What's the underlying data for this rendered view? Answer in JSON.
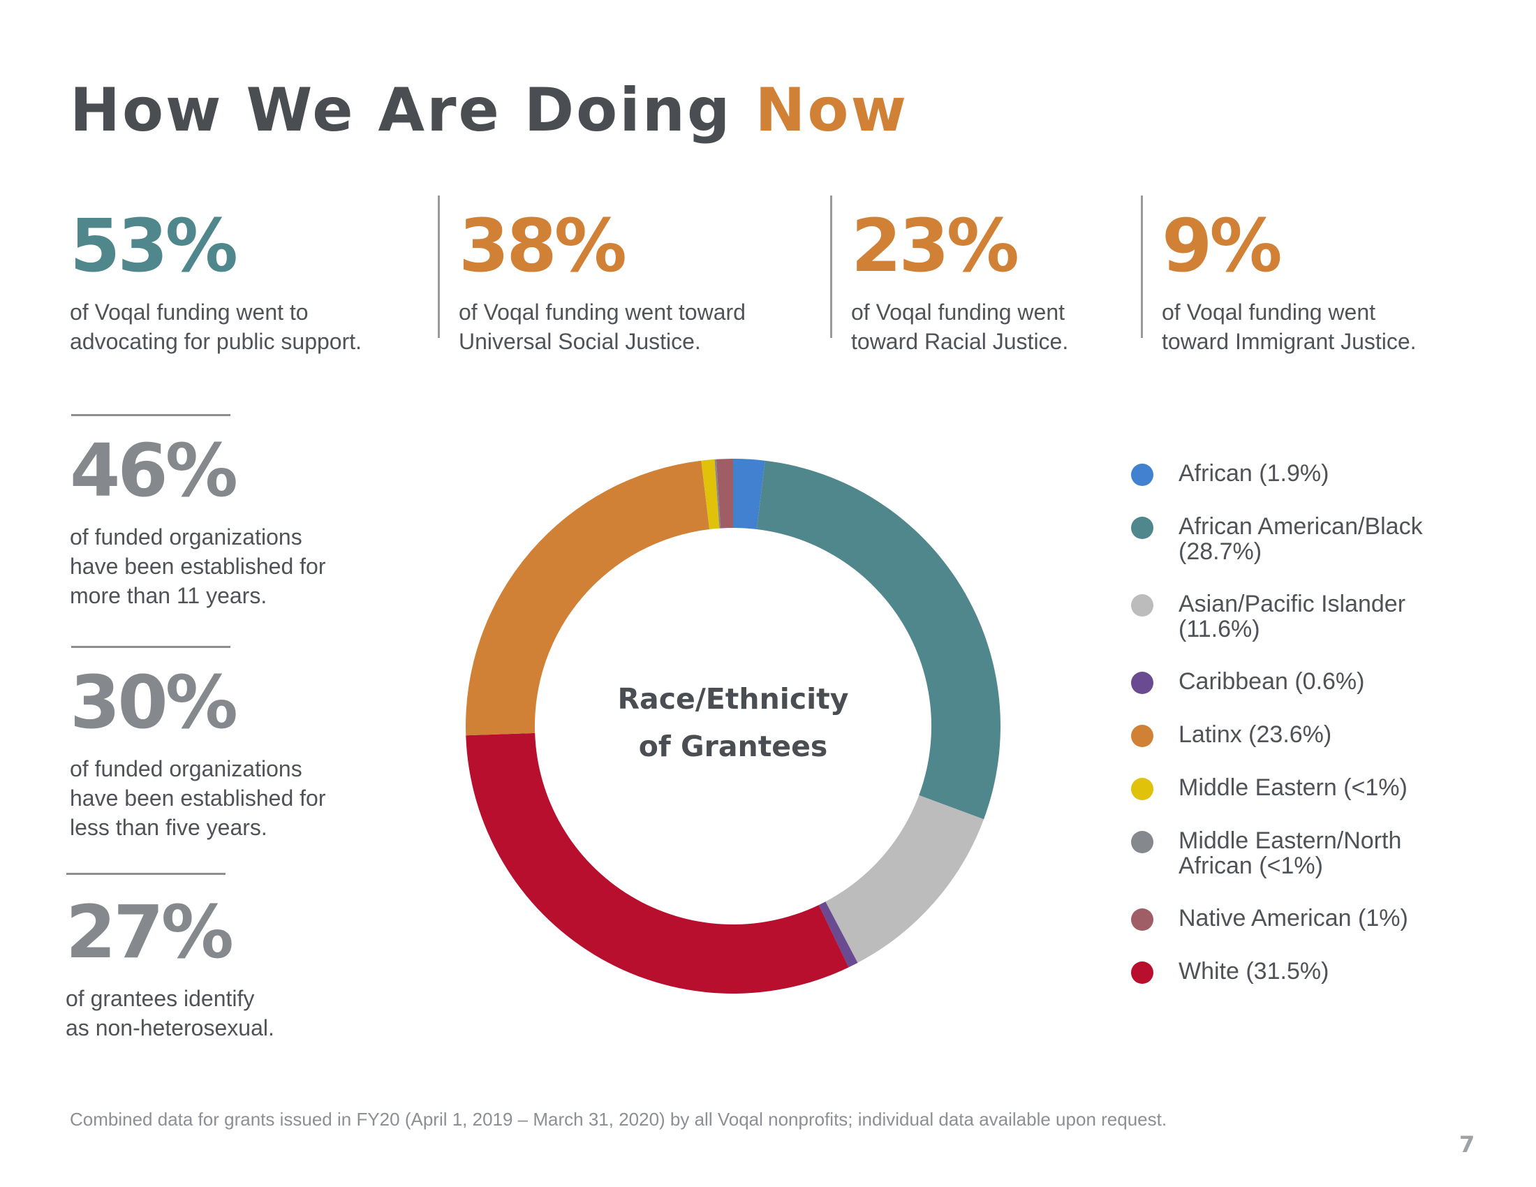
{
  "title": {
    "main": "How We Are Doing",
    "accent": "Now"
  },
  "colors": {
    "teal": "#4f878c",
    "orange": "#d18136",
    "gray": "#85888c",
    "title": "#4a4d52"
  },
  "top_stats": [
    {
      "value": "53%",
      "text": "of Voqal funding went to\nadvocating for public support."
    },
    {
      "value": "38%",
      "text": "of Voqal funding went toward\nUniversal Social Justice."
    },
    {
      "value": "23%",
      "text": "of Voqal funding went\ntoward Racial Justice."
    },
    {
      "value": "9%",
      "text": "of Voqal funding went\ntoward Immigrant Justice."
    }
  ],
  "left_stats": [
    {
      "value": "46%",
      "text": "of funded organizations\nhave been established for\nmore than 11 years."
    },
    {
      "value": "30%",
      "text": "of funded organizations\nhave been established for\nless than five years."
    },
    {
      "value": "27%",
      "text": "of grantees identify\nas non-heterosexual."
    }
  ],
  "chart_data": {
    "type": "pie",
    "subtype": "donut",
    "title": "Race/Ethnicity\nof Grantees",
    "legend_position": "right",
    "slices": [
      {
        "label": "African (1.9%)",
        "value": 1.9,
        "color": "#4281d0"
      },
      {
        "label": "African American/Black\n(28.7%)",
        "value": 28.7,
        "color": "#4f878c"
      },
      {
        "label": "Asian/Pacific Islander\n(11.6%)",
        "value": 11.6,
        "color": "#bcbcbc"
      },
      {
        "label": "Caribbean (0.6%)",
        "value": 0.6,
        "color": "#6a4b91"
      },
      {
        "label": "White (31.5%)",
        "value": 31.5,
        "color": "#b80f2e"
      },
      {
        "label": "Latinx (23.6%)",
        "value": 23.6,
        "color": "#d18136"
      },
      {
        "label": "Middle Eastern (<1%)",
        "value": 0.8,
        "color": "#e1c20a"
      },
      {
        "label": "Middle Eastern/North\nAfrican (<1%)",
        "value": 0.1,
        "color": "#85888c"
      },
      {
        "label": "Native American (1%)",
        "value": 1.0,
        "color": "#9f5e66"
      }
    ],
    "legend": [
      {
        "label": "African (1.9%)",
        "color": "#4281d0"
      },
      {
        "label": "African American/Black\n(28.7%)",
        "color": "#4f878c"
      },
      {
        "label": "Asian/Pacific Islander\n(11.6%)",
        "color": "#bcbcbc"
      },
      {
        "label": "Caribbean (0.6%)",
        "color": "#6a4b91"
      },
      {
        "label": "Latinx (23.6%)",
        "color": "#d18136"
      },
      {
        "label": "Middle Eastern (<1%)",
        "color": "#e1c20a"
      },
      {
        "label": "Middle Eastern/North\nAfrican (<1%)",
        "color": "#85888c"
      },
      {
        "label": "Native American (1%)",
        "color": "#9f5e66"
      },
      {
        "label": "White (31.5%)",
        "color": "#b80f2e"
      }
    ]
  },
  "footnote": "Combined data for grants issued in FY20 (April 1, 2019 – March 31, 2020) by all Voqal nonprofits; individual data available upon request.",
  "page_number": "7"
}
